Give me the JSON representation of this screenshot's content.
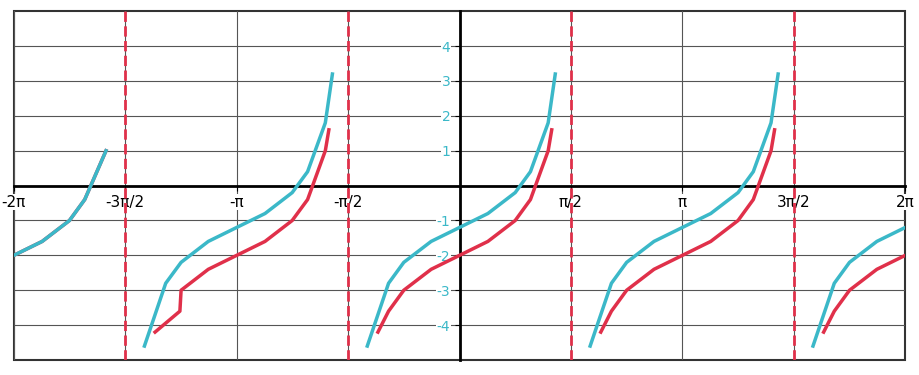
{
  "chart_data": {
    "type": "line",
    "xlim": [
      -6.2832,
      6.2832
    ],
    "ylim": [
      -5,
      5
    ],
    "xticks": [
      {
        "value": -6.2832,
        "label": "-2π"
      },
      {
        "value": -4.7124,
        "label": "-3π/2"
      },
      {
        "value": -3.1416,
        "label": "-π"
      },
      {
        "value": -1.5708,
        "label": "-π/2"
      },
      {
        "value": 1.5708,
        "label": "π/2"
      },
      {
        "value": 3.1416,
        "label": "π"
      },
      {
        "value": 4.7124,
        "label": "3π/2"
      },
      {
        "value": 6.2832,
        "label": "2π"
      }
    ],
    "yticks": [
      -4,
      -3,
      -2,
      -1,
      1,
      2,
      3,
      4
    ],
    "grid": true,
    "asymptotes": [
      -4.7124,
      -1.5708,
      1.5708,
      4.7124
    ],
    "asymptote_color": "#e0304a",
    "series": [
      {
        "color": "#e0304a",
        "line_style": "solid",
        "x": [
          -6.2832,
          -5.8832,
          -5.4982,
          -5.2832,
          -4.9832,
          null,
          -4.2916,
          -3.9416,
          -3.9248,
          -3.5416,
          -3.1416,
          -2.7416,
          -2.3584,
          -2.1416,
          -1.8916,
          -1.8416,
          null,
          -1.15,
          -1.0,
          -0.7854,
          -0.4,
          0.0,
          0.4,
          0.7854,
          1.0,
          1.25,
          1.3,
          null,
          1.9916,
          2.1416,
          2.3562,
          2.7416,
          3.1416,
          3.5416,
          3.927,
          4.1416,
          4.3916,
          4.4416,
          null,
          5.1332,
          5.2832,
          5.4978,
          5.8832,
          6.2832
        ],
        "values": [
          -2.0,
          -1.6,
          -1.0,
          -0.4,
          1.0,
          null,
          -4.2,
          -3.6,
          -3.0,
          -2.4,
          -2.0,
          -1.6,
          -1.0,
          -0.4,
          1.0,
          1.6,
          null,
          -4.2,
          -3.6,
          -3.0,
          -2.4,
          -2.0,
          -1.6,
          -1.0,
          -0.4,
          1.0,
          1.6,
          null,
          -4.2,
          -3.6,
          -3.0,
          -2.4,
          -2.0,
          -1.6,
          -1.0,
          -0.4,
          1.0,
          1.6,
          null,
          -4.2,
          -3.6,
          -3.0,
          -2.4,
          -2.0
        ]
      },
      {
        "color": "#3bb8c8",
        "line_style": "solid",
        "x": [
          -6.2832,
          -5.8832,
          -5.4982,
          -5.2832,
          -4.9832,
          null,
          -4.4416,
          -4.1416,
          -3.9248,
          -3.5416,
          -3.1416,
          -2.7416,
          -2.3584,
          -2.1416,
          -1.8916,
          -1.7916,
          null,
          -1.3,
          -1.0,
          -0.7854,
          -0.4,
          0.0,
          0.4,
          0.7854,
          1.0,
          1.25,
          1.35,
          null,
          1.8416,
          2.1416,
          2.3562,
          2.7416,
          3.1416,
          3.5416,
          3.927,
          4.1416,
          4.3916,
          4.4916,
          null,
          4.9832,
          5.2832,
          5.4978,
          5.8832,
          6.2832
        ],
        "values": [
          -2.0,
          -1.6,
          -1.0,
          -0.4,
          1.0,
          null,
          -4.6,
          -2.8,
          -2.2,
          -1.6,
          -1.2,
          -0.8,
          -0.2,
          0.4,
          1.8,
          3.2,
          null,
          -4.6,
          -2.8,
          -2.2,
          -1.6,
          -1.2,
          -0.8,
          -0.2,
          0.4,
          1.8,
          3.2,
          null,
          -4.6,
          -2.8,
          -2.2,
          -1.6,
          -1.2,
          -0.8,
          -0.2,
          0.4,
          1.8,
          3.2,
          null,
          -4.6,
          -2.8,
          -2.2,
          -1.6,
          -1.2
        ]
      }
    ]
  }
}
